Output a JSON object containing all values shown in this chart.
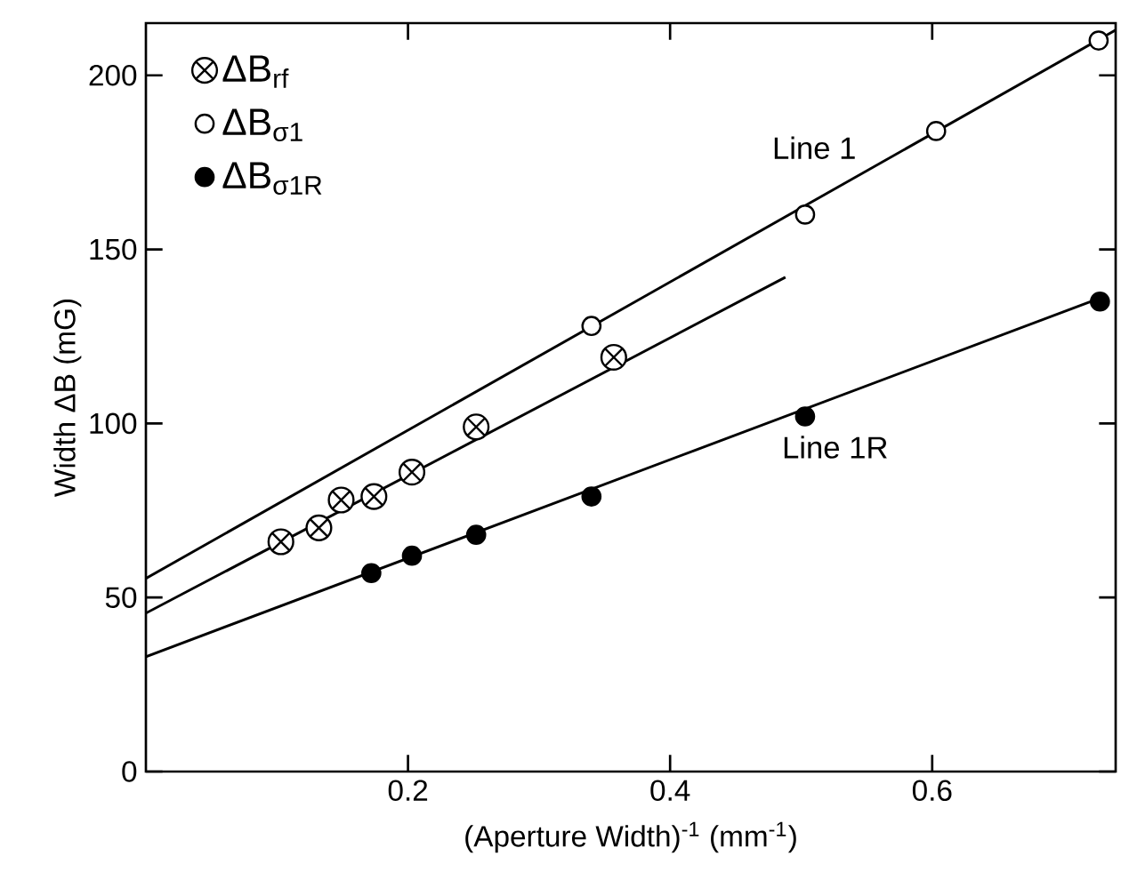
{
  "chart_data": {
    "type": "scatter",
    "xlabel": "(Aperture Width)$^{-1}$ (mm$^{-1}$)",
    "ylabel": "Width ΔB (mG)",
    "xlim": [
      0,
      0.74
    ],
    "ylim": [
      0,
      215
    ],
    "xticks": [
      0.2,
      0.4,
      0.6
    ],
    "yticks": [
      0,
      50,
      100,
      150,
      200
    ],
    "legend": "top left",
    "grid": false,
    "series": [
      {
        "name": "ΔB$_{rf}$",
        "marker": "cross",
        "color": "#000000",
        "x": [
          0.103,
          0.132,
          0.149,
          0.174,
          0.203,
          0.252,
          0.357
        ],
        "values": [
          66,
          70,
          78,
          79,
          86,
          99,
          119
        ]
      },
      {
        "name": "ΔB$_{σ1}$",
        "marker": "circle",
        "color": "#ffffff",
        "x": [
          0.34,
          0.503,
          0.603,
          0.727
        ],
        "values": [
          128,
          160,
          184,
          210
        ]
      },
      {
        "name": "ΔB$_{σ1R}$",
        "marker": "circle",
        "color": "#000000",
        "x": [
          0.172,
          0.203,
          0.252,
          0.34,
          0.503,
          0.728
        ],
        "values": [
          57,
          62,
          68,
          79,
          102,
          135
        ]
      },
      {
        "type": "line",
        "marker": "none",
        "color": "#000000",
        "x": [
          0,
          0.74
        ],
        "values": [
          55.5,
          213
        ]
      },
      {
        "type": "line",
        "marker": "none",
        "color": "#000000",
        "x": [
          0,
          0.488
        ],
        "values": [
          45.5,
          142
        ]
      },
      {
        "type": "line",
        "marker": "none",
        "color": "#000000",
        "x": [
          0,
          0.728
        ],
        "values": [
          33,
          136
        ]
      }
    ],
    "annotations": [
      {
        "text": "Line 1",
        "x": 0.51,
        "y": 164
      },
      {
        "text": "Line 1R",
        "x": 0.526,
        "y": 107
      }
    ]
  }
}
